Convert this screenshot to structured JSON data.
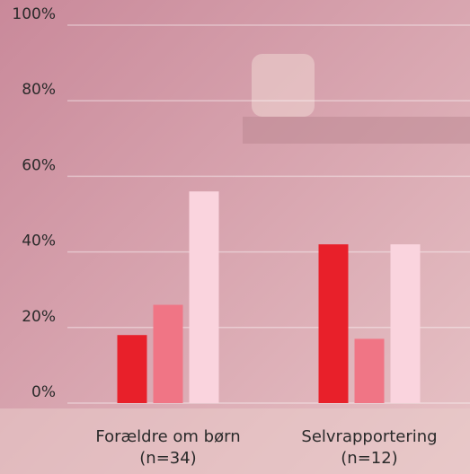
{
  "chart_data": {
    "type": "bar",
    "categories": [
      "Forældre om børn (n=34)",
      "Selvrapportering (n=12)"
    ],
    "series": [
      {
        "color": "#e8202a",
        "values": [
          18,
          42
        ]
      },
      {
        "color": "#f07585",
        "values": [
          26,
          17
        ]
      },
      {
        "color": "#fad4de",
        "values": [
          56,
          42
        ]
      }
    ],
    "ylim": [
      0,
      100
    ],
    "yticks": [
      {
        "value": 0,
        "label": "0%"
      },
      {
        "value": 20,
        "label": "20%"
      },
      {
        "value": 40,
        "label": "40%"
      },
      {
        "value": 60,
        "label": "60%"
      },
      {
        "value": 80,
        "label": "80%"
      },
      {
        "value": 100,
        "label": "100%"
      }
    ],
    "grid": true
  }
}
